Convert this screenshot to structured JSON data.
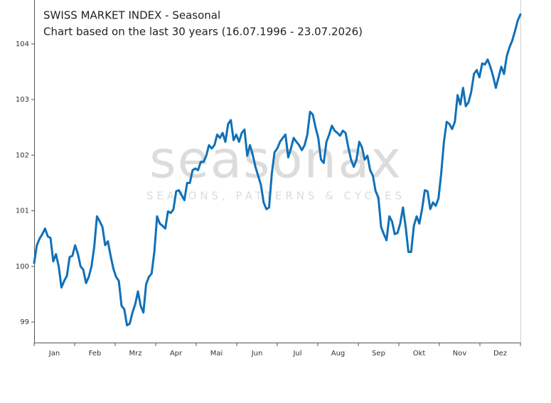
{
  "chart_data": {
    "type": "line",
    "title": "SWISS MARKET INDEX - Seasonal",
    "subtitle": "Chart based on the last 30 years (16.07.1996 - 23.07.2026)",
    "watermark": "seasonax",
    "watermark_tagline": "SEASONS, PATTERNS & CYCLES",
    "months": [
      "Jan",
      "Feb",
      "Mrz",
      "Apr",
      "Mai",
      "Jun",
      "Jul",
      "Aug",
      "Sep",
      "Okt",
      "Nov",
      "Dez"
    ],
    "ylim": [
      98.63,
      104.79
    ],
    "yticks": [
      99,
      100,
      101,
      102,
      103,
      104
    ],
    "grid": false,
    "series": [
      {
        "color": "#1070b8",
        "values": [
          100.06,
          100.38,
          100.5,
          100.58,
          100.68,
          100.54,
          100.51,
          100.09,
          100.22,
          100.0,
          99.62,
          99.74,
          99.83,
          100.17,
          100.19,
          100.38,
          100.23,
          100.0,
          99.94,
          99.7,
          99.81,
          100.0,
          100.35,
          100.9,
          100.81,
          100.71,
          100.38,
          100.45,
          100.19,
          99.96,
          99.81,
          99.74,
          99.29,
          99.23,
          98.94,
          98.97,
          99.17,
          99.32,
          99.55,
          99.29,
          99.17,
          99.68,
          99.81,
          99.87,
          100.26,
          100.9,
          100.77,
          100.73,
          100.68,
          100.99,
          100.96,
          101.03,
          101.35,
          101.37,
          101.28,
          101.19,
          101.5,
          101.5,
          101.73,
          101.76,
          101.73,
          101.88,
          101.88,
          101.99,
          102.18,
          102.12,
          102.18,
          102.37,
          102.31,
          102.4,
          102.24,
          102.56,
          102.63,
          102.27,
          102.37,
          102.24,
          102.4,
          102.46,
          101.99,
          102.18,
          102.01,
          101.79,
          101.63,
          101.47,
          101.15,
          101.03,
          101.06,
          101.67,
          102.05,
          102.12,
          102.24,
          102.31,
          102.37,
          101.96,
          102.12,
          102.31,
          102.24,
          102.18,
          102.09,
          102.18,
          102.37,
          102.78,
          102.73,
          102.5,
          102.31,
          101.92,
          101.86,
          102.24,
          102.37,
          102.53,
          102.44,
          102.4,
          102.35,
          102.44,
          102.4,
          102.14,
          101.92,
          101.79,
          101.92,
          102.24,
          102.14,
          101.92,
          101.99,
          101.73,
          101.63,
          101.35,
          101.24,
          100.71,
          100.58,
          100.47,
          100.9,
          100.81,
          100.58,
          100.6,
          100.77,
          101.06,
          100.71,
          100.26,
          100.26,
          100.73,
          100.9,
          100.77,
          101.03,
          101.37,
          101.35,
          101.03,
          101.15,
          101.09,
          101.22,
          101.67,
          102.24,
          102.6,
          102.56,
          102.47,
          102.6,
          103.08,
          102.91,
          103.21,
          102.88,
          102.95,
          103.14,
          103.46,
          103.53,
          103.4,
          103.65,
          103.63,
          103.72,
          103.59,
          103.42,
          103.21,
          103.4,
          103.59,
          103.46,
          103.78,
          103.94,
          104.06,
          104.23,
          104.42,
          104.53
        ]
      }
    ]
  }
}
